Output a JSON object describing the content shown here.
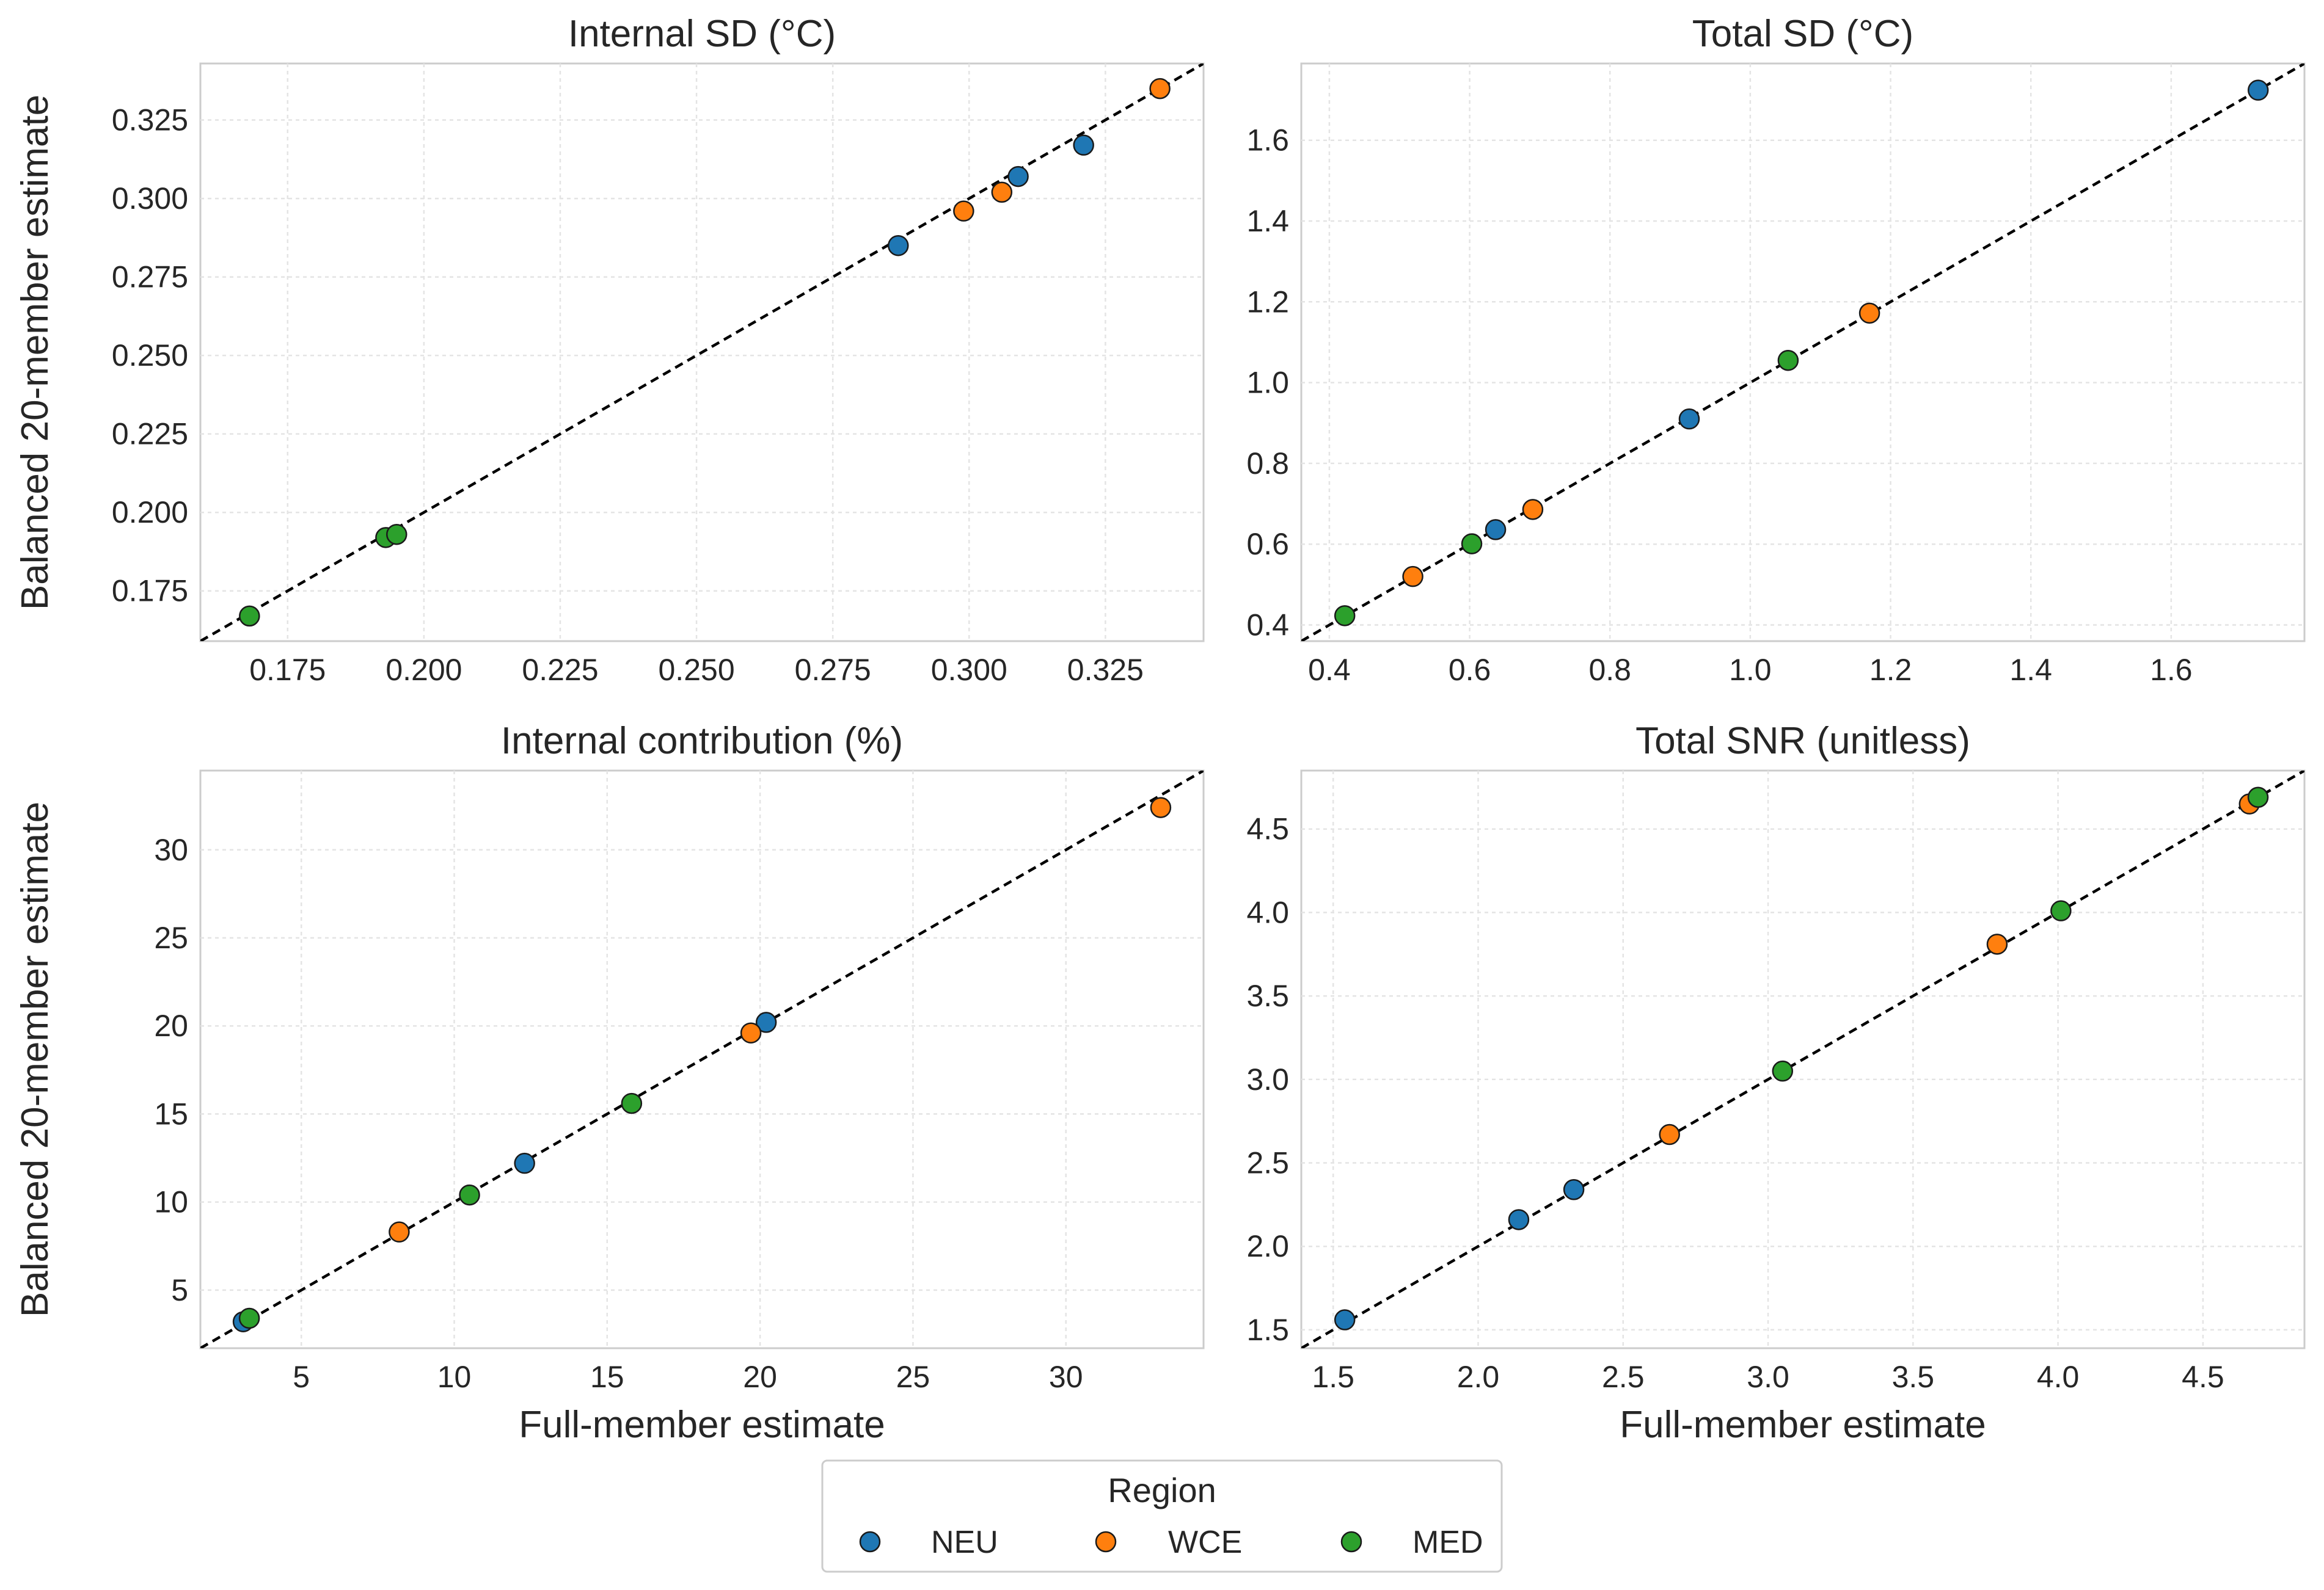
{
  "chart_data": [
    {
      "type": "scatter",
      "title": "Internal SD (°C)",
      "xlabel": "",
      "ylabel": "Balanced 20-member estimate",
      "xlim": [
        0.159,
        0.343
      ],
      "ylim": [
        0.159,
        0.343
      ],
      "xticks": [
        0.175,
        0.2,
        0.225,
        0.25,
        0.275,
        0.3,
        0.325
      ],
      "yticks": [
        0.175,
        0.2,
        0.225,
        0.25,
        0.275,
        0.3,
        0.325
      ],
      "xtick_labels": [
        "0.175",
        "0.200",
        "0.225",
        "0.250",
        "0.275",
        "0.300",
        "0.325"
      ],
      "ytick_labels": [
        "0.175",
        "0.200",
        "0.225",
        "0.250",
        "0.275",
        "0.300",
        "0.325"
      ],
      "grid": true,
      "identity_line": true,
      "series": [
        {
          "name": "NEU",
          "x": [
            0.287,
            0.309,
            0.321
          ],
          "y": [
            0.285,
            0.307,
            0.317
          ]
        },
        {
          "name": "WCE",
          "x": [
            0.299,
            0.306,
            0.335
          ],
          "y": [
            0.296,
            0.302,
            0.335
          ]
        },
        {
          "name": "MED",
          "x": [
            0.168,
            0.193,
            0.195
          ],
          "y": [
            0.167,
            0.192,
            0.193
          ]
        }
      ]
    },
    {
      "type": "scatter",
      "title": "Total SD (°C)",
      "xlabel": "",
      "ylabel": "",
      "xlim": [
        0.36,
        1.79
      ],
      "ylim": [
        0.36,
        1.79
      ],
      "xticks": [
        0.4,
        0.6,
        0.8,
        1.0,
        1.2,
        1.4,
        1.6
      ],
      "yticks": [
        0.4,
        0.6,
        0.8,
        1.0,
        1.2,
        1.4,
        1.6
      ],
      "xtick_labels": [
        "0.4",
        "0.6",
        "0.8",
        "1.0",
        "1.2",
        "1.4",
        "1.6"
      ],
      "ytick_labels": [
        "0.4",
        "0.6",
        "0.8",
        "1.0",
        "1.2",
        "1.4",
        "1.6"
      ],
      "grid": true,
      "identity_line": true,
      "series": [
        {
          "name": "NEU",
          "x": [
            0.637,
            0.913,
            1.724
          ],
          "y": [
            0.636,
            0.91,
            1.724
          ]
        },
        {
          "name": "WCE",
          "x": [
            0.519,
            0.69,
            1.17
          ],
          "y": [
            0.52,
            0.686,
            1.172
          ]
        },
        {
          "name": "MED",
          "x": [
            0.422,
            0.603,
            1.054
          ],
          "y": [
            0.423,
            0.601,
            1.055
          ]
        }
      ]
    },
    {
      "type": "scatter",
      "title": "Internal contribution (%)",
      "xlabel": "Full-member estimate",
      "ylabel": "Balanced 20-member estimate",
      "xlim": [
        1.7,
        34.5
      ],
      "ylim": [
        1.7,
        34.5
      ],
      "xticks": [
        5,
        10,
        15,
        20,
        25,
        30
      ],
      "yticks": [
        5,
        10,
        15,
        20,
        25,
        30
      ],
      "xtick_labels": [
        "5",
        "10",
        "15",
        "20",
        "25",
        "30"
      ],
      "ytick_labels": [
        "5",
        "10",
        "15",
        "20",
        "25",
        "30"
      ],
      "grid": true,
      "identity_line": true,
      "series": [
        {
          "name": "NEU",
          "x": [
            3.1,
            12.3,
            20.2
          ],
          "y": [
            3.2,
            12.2,
            20.2
          ]
        },
        {
          "name": "WCE",
          "x": [
            8.2,
            19.7,
            33.1
          ],
          "y": [
            8.3,
            19.6,
            32.4
          ]
        },
        {
          "name": "MED",
          "x": [
            3.3,
            10.5,
            15.8
          ],
          "y": [
            3.4,
            10.4,
            15.6
          ]
        }
      ]
    },
    {
      "type": "scatter",
      "title": "Total SNR (unitless)",
      "xlabel": "Full-member estimate",
      "ylabel": "",
      "xlim": [
        1.39,
        4.85
      ],
      "ylim": [
        1.39,
        4.85
      ],
      "xticks": [
        1.5,
        2.0,
        2.5,
        3.0,
        3.5,
        4.0,
        4.5
      ],
      "yticks": [
        1.5,
        2.0,
        2.5,
        3.0,
        3.5,
        4.0,
        4.5
      ],
      "xtick_labels": [
        "1.5",
        "2.0",
        "2.5",
        "3.0",
        "3.5",
        "4.0",
        "4.5"
      ],
      "ytick_labels": [
        "1.5",
        "2.0",
        "2.5",
        "3.0",
        "3.5",
        "4.0",
        "4.5"
      ],
      "grid": true,
      "identity_line": true,
      "series": [
        {
          "name": "NEU",
          "x": [
            1.54,
            2.14,
            2.33
          ],
          "y": [
            1.56,
            2.16,
            2.34
          ]
        },
        {
          "name": "WCE",
          "x": [
            2.66,
            3.79,
            4.66
          ],
          "y": [
            2.67,
            3.81,
            4.65
          ]
        },
        {
          "name": "MED",
          "x": [
            3.05,
            4.01,
            4.69
          ],
          "y": [
            3.05,
            4.01,
            4.69
          ]
        }
      ]
    }
  ],
  "legend": {
    "title": "Region",
    "position": "bottom-center",
    "items": [
      {
        "label": "NEU",
        "color": "#1f77b4"
      },
      {
        "label": "WCE",
        "color": "#ff7f0e"
      },
      {
        "label": "MED",
        "color": "#2ca02c"
      }
    ]
  }
}
